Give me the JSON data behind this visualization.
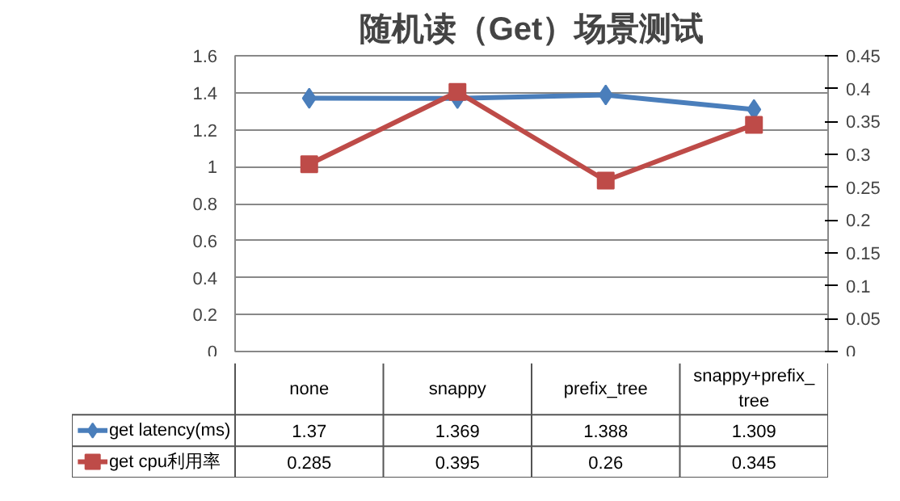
{
  "chart_data": {
    "type": "line",
    "title": "随机读（Get）场景测试",
    "categories": [
      "none",
      "snappy",
      "prefix_tree",
      "snappy+prefix_tree"
    ],
    "series": [
      {
        "name": "get latency(ms)",
        "color": "#4a7ebb",
        "marker": "diamond",
        "values": [
          1.37,
          1.369,
          1.388,
          1.309
        ]
      },
      {
        "name": "get cpu利用率",
        "color": "#be4b48",
        "marker": "square",
        "axis": "y2",
        "values": [
          0.285,
          0.395,
          0.26,
          0.345
        ]
      }
    ],
    "ylim": [
      0,
      1.6
    ],
    "yticks": [
      0,
      0.2,
      0.4,
      0.6,
      0.8,
      1,
      1.2,
      1.4,
      1.6
    ],
    "y2lim": [
      0,
      0.45
    ],
    "y2ticks": [
      0,
      0.05,
      0.1,
      0.15,
      0.2,
      0.25,
      0.3,
      0.35,
      0.4,
      0.45
    ],
    "grid": "y",
    "legend": "bottom",
    "data_labels": true
  }
}
